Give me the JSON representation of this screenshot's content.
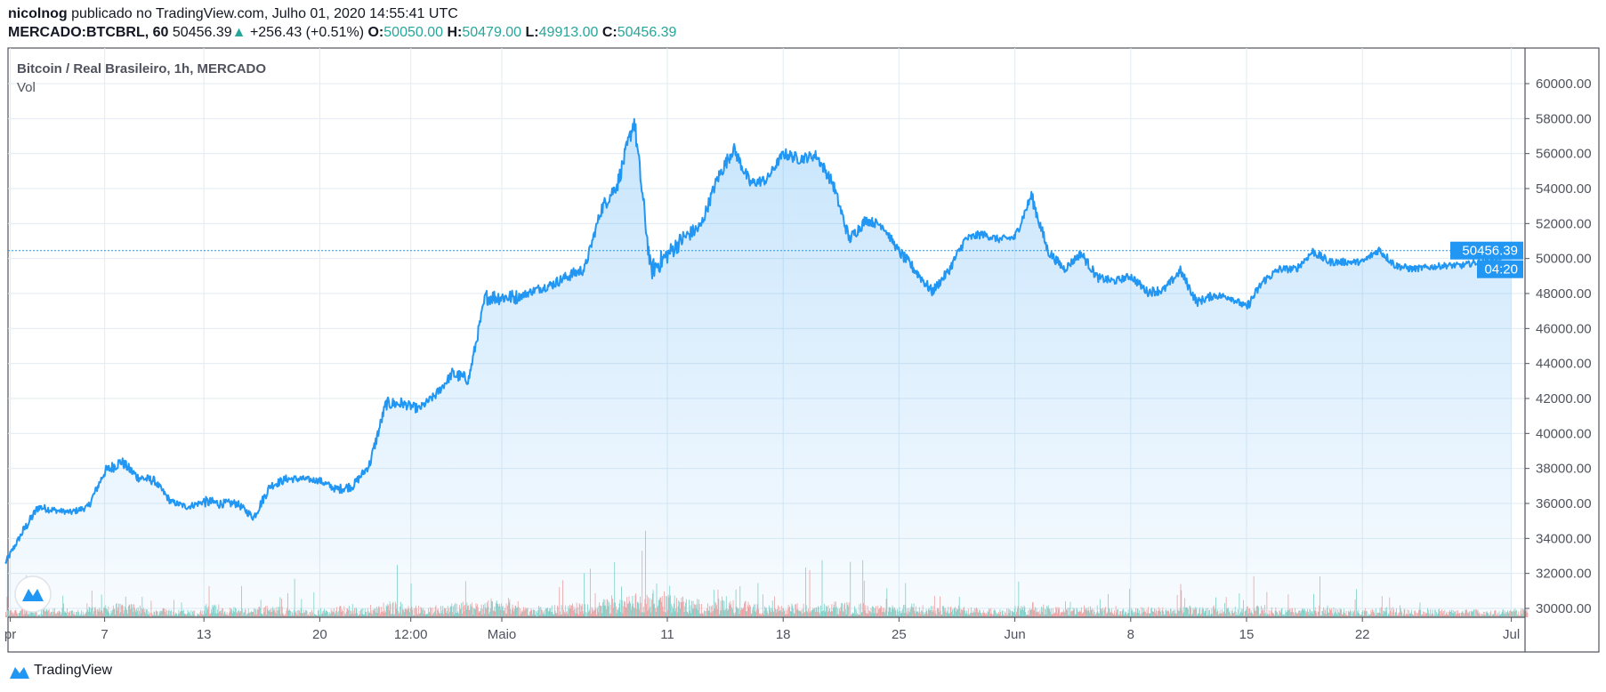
{
  "header": {
    "user": "nicolnog",
    "published": "publicado no TradingView.com, Julho 01, 2020 14:55:41 UTC",
    "symbol": "MERCADO:BTCBRL, 60",
    "last": "50456.39",
    "change": "+256.43 (+0.51%)",
    "o_label": "O:",
    "o": "50050.00",
    "h_label": "H:",
    "h": "50479.00",
    "l_label": "L:",
    "l": "49913.00",
    "c_label": "C:",
    "c": "50456.39"
  },
  "legend": {
    "title": "Bitcoin / Real Brasileiro, 1h, MERCADO",
    "vol": "Vol"
  },
  "price_label": {
    "value": "50456.39",
    "countdown": "04:20"
  },
  "footer": {
    "brand": "TradingView"
  },
  "colors": {
    "line": "#2196f3",
    "up": "#26a69a",
    "down": "#ef5350",
    "grid": "#e1ecf2"
  },
  "chart_data": {
    "type": "area",
    "ylim": [
      29000,
      61500
    ],
    "yticks": [
      30000,
      32000,
      34000,
      36000,
      38000,
      40000,
      42000,
      44000,
      46000,
      48000,
      50000,
      52000,
      54000,
      56000,
      58000,
      60000
    ],
    "ytick_labels": [
      "30000.00",
      "32000.00",
      "34000.00",
      "36000.00",
      "38000.00",
      "40000.00",
      "42000.00",
      "44000.00",
      "46000.00",
      "48000.00",
      "50000.00",
      "52000.00",
      "54000.00",
      "56000.00",
      "58000.00",
      "60000.00"
    ],
    "xticks": [
      {
        "label": "pr",
        "day": 0.3
      },
      {
        "label": "7",
        "day": 6
      },
      {
        "label": "13",
        "day": 12
      },
      {
        "label": "20",
        "day": 19
      },
      {
        "label": "12:00",
        "day": 24.5
      },
      {
        "label": "Maio",
        "day": 30
      },
      {
        "label": "11",
        "day": 40
      },
      {
        "label": "18",
        "day": 47
      },
      {
        "label": "25",
        "day": 54
      },
      {
        "label": "Jun",
        "day": 61
      },
      {
        "label": "8",
        "day": 68
      },
      {
        "label": "15",
        "day": 75
      },
      {
        "label": "22",
        "day": 82
      },
      {
        "label": "Jul",
        "day": 91
      }
    ],
    "x": [
      "04-01",
      "04-02",
      "04-03",
      "04-04",
      "04-05",
      "04-06",
      "04-07",
      "04-08",
      "04-09",
      "04-10",
      "04-11",
      "04-12",
      "04-13",
      "04-14",
      "04-15",
      "04-16",
      "04-17",
      "04-18",
      "04-19",
      "04-20",
      "04-21",
      "04-22",
      "04-23",
      "04-24",
      "04-25",
      "04-26",
      "04-27",
      "04-28",
      "04-29",
      "04-30",
      "05-01",
      "05-02",
      "05-03",
      "05-04",
      "05-05",
      "05-06",
      "05-07",
      "05-08",
      "05-09",
      "05-10",
      "05-11",
      "05-12",
      "05-13",
      "05-14",
      "05-15",
      "05-16",
      "05-17",
      "05-18",
      "05-19",
      "05-20",
      "05-21",
      "05-22",
      "05-23",
      "05-24",
      "05-25",
      "05-26",
      "05-27",
      "05-28",
      "05-29",
      "05-30",
      "05-31",
      "06-01",
      "06-02",
      "06-03",
      "06-04",
      "06-05",
      "06-06",
      "06-07",
      "06-08",
      "06-09",
      "06-10",
      "06-11",
      "06-12",
      "06-13",
      "06-14",
      "06-15",
      "06-16",
      "06-17",
      "06-18",
      "06-19",
      "06-20",
      "06-21",
      "06-22",
      "06-23",
      "06-24",
      "06-25",
      "06-26",
      "06-27",
      "06-28",
      "06-29",
      "06-30",
      "07-01"
    ],
    "price": [
      32600,
      34300,
      35800,
      35600,
      35500,
      35800,
      37800,
      38400,
      37500,
      37300,
      36100,
      35800,
      36100,
      36000,
      36000,
      35200,
      37000,
      37400,
      37400,
      37300,
      36800,
      37000,
      38200,
      41700,
      41700,
      41400,
      42200,
      43400,
      43100,
      47800,
      47800,
      47800,
      48200,
      48500,
      49000,
      49400,
      52800,
      54300,
      57900,
      49300,
      50200,
      51200,
      51800,
      54500,
      56300,
      54300,
      54500,
      56000,
      55700,
      55900,
      54300,
      51100,
      52200,
      51900,
      50400,
      49300,
      48100,
      49300,
      51100,
      51400,
      51100,
      51200,
      53600,
      50400,
      49400,
      50300,
      48900,
      48700,
      49000,
      48100,
      48200,
      49300,
      47500,
      47900,
      47800,
      47200,
      48700,
      49400,
      49400,
      50400,
      49800,
      49800,
      49800,
      50500,
      49600,
      49400,
      49500,
      49600,
      49600,
      49800,
      49900,
      50456.39
    ],
    "volume_intensity": [
      30,
      45,
      35,
      25,
      30,
      40,
      55,
      50,
      45,
      35,
      30,
      30,
      50,
      40,
      35,
      45,
      40,
      35,
      30,
      35,
      45,
      40,
      55,
      60,
      45,
      40,
      45,
      60,
      55,
      75,
      70,
      40,
      45,
      50,
      55,
      50,
      70,
      80,
      95,
      100,
      85,
      70,
      60,
      65,
      60,
      50,
      45,
      55,
      50,
      55,
      60,
      55,
      45,
      40,
      55,
      50,
      45,
      45,
      40,
      35,
      35,
      45,
      60,
      45,
      40,
      45,
      40,
      35,
      40,
      45,
      40,
      45,
      40,
      35,
      35,
      45,
      40,
      35,
      35,
      40,
      35,
      30,
      35,
      40,
      35,
      30,
      30,
      30,
      30,
      25,
      30,
      35
    ]
  }
}
